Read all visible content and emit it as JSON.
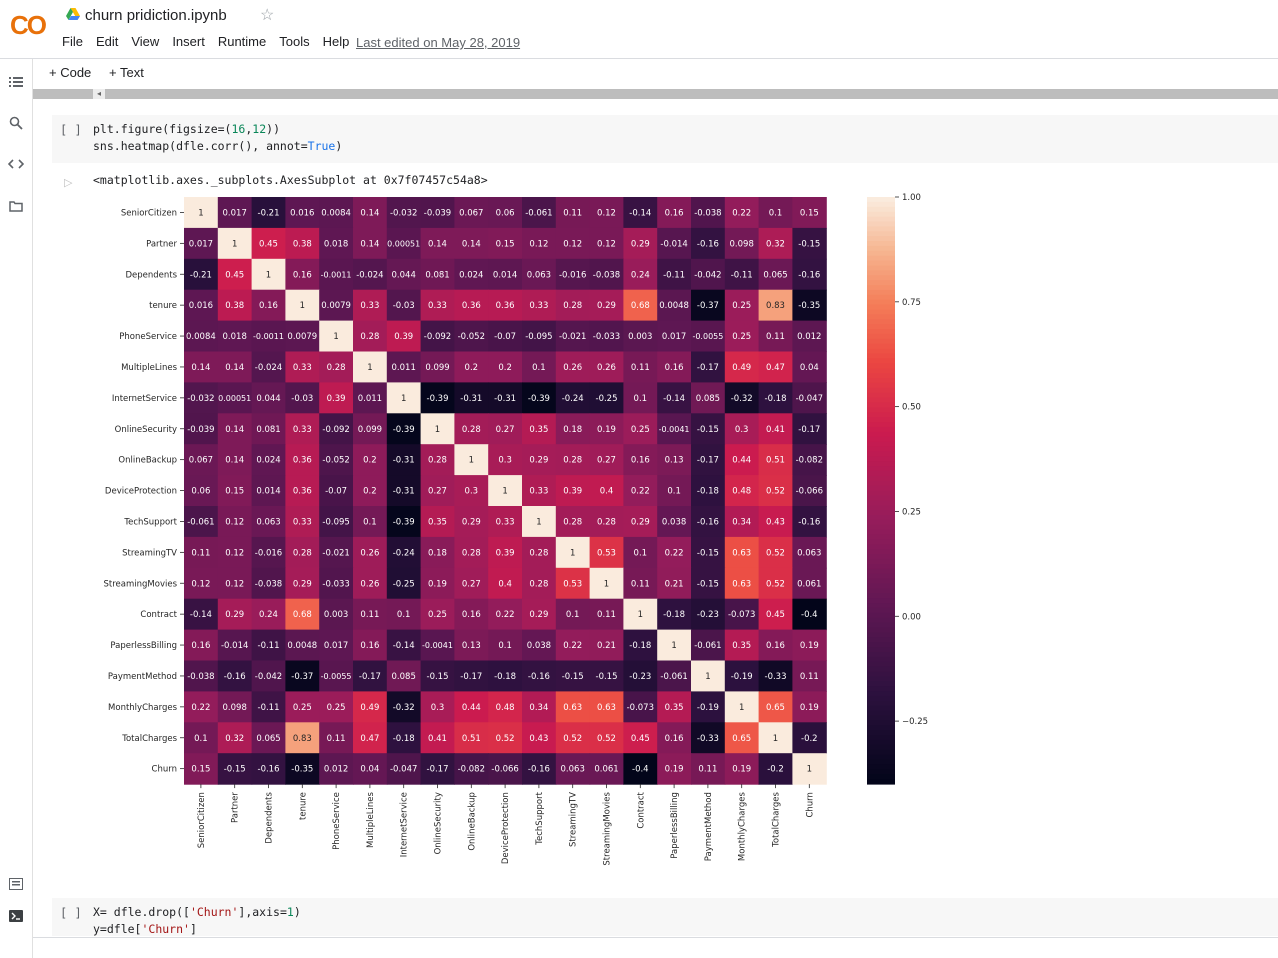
{
  "header": {
    "logo": "CO",
    "title": "churn pridiction.ipynb",
    "last_edited": "Last edited on May 28, 2019"
  },
  "menu": [
    "File",
    "Edit",
    "View",
    "Insert",
    "Runtime",
    "Tools",
    "Help"
  ],
  "toolbar": {
    "code_label": "+ Code",
    "text_label": "+ Text"
  },
  "sidebar_icons": [
    "toc-icon",
    "search-icon",
    "code-snippets-icon",
    "files-icon",
    "command-palette-icon",
    "terminal-icon"
  ],
  "cell1": {
    "run_label": "[ ]",
    "lines": [
      "plt.figure(figsize=(16,12))",
      "sns.heatmap(dfle.corr(), annot=True)"
    ]
  },
  "output": {
    "text": "<matplotlib.axes._subplots.AxesSubplot at 0x7f07457c54a8>"
  },
  "cell2": {
    "run_label": "[ ]",
    "lines": [
      "X= dfle.drop(['Churn'],axis=1)",
      "y=dfle['Churn']"
    ]
  },
  "chart_data": {
    "type": "heatmap",
    "labels": [
      "SeniorCitizen",
      "Partner",
      "Dependents",
      "tenure",
      "PhoneService",
      "MultipleLines",
      "InternetService",
      "OnlineSecurity",
      "OnlineBackup",
      "DeviceProtection",
      "TechSupport",
      "StreamingTV",
      "StreamingMovies",
      "Contract",
      "PaperlessBilling",
      "PaymentMethod",
      "MonthlyCharges",
      "TotalCharges",
      "Churn"
    ],
    "annotations": [
      [
        "1",
        "0.017",
        "-0.21",
        "0.016",
        "0.0084",
        "0.14",
        "-0.032",
        "-0.039",
        "0.067",
        "0.06",
        "-0.061",
        "0.11",
        "0.12",
        "-0.14",
        "0.16",
        "-0.038",
        "0.22",
        "0.1",
        "0.15"
      ],
      [
        "0.017",
        "1",
        "0.45",
        "0.38",
        "0.018",
        "0.14",
        "0.00051",
        "0.14",
        "0.14",
        "0.15",
        "0.12",
        "0.12",
        "0.12",
        "0.29",
        "-0.014",
        "-0.16",
        "0.098",
        "0.32",
        "-0.15"
      ],
      [
        "-0.21",
        "0.45",
        "1",
        "0.16",
        "-0.0011",
        "-0.024",
        "0.044",
        "0.081",
        "0.024",
        "0.014",
        "0.063",
        "-0.016",
        "-0.038",
        "0.24",
        "-0.11",
        "-0.042",
        "-0.11",
        "0.065",
        "-0.16"
      ],
      [
        "0.016",
        "0.38",
        "0.16",
        "1",
        "0.0079",
        "0.33",
        "-0.03",
        "0.33",
        "0.36",
        "0.36",
        "0.33",
        "0.28",
        "0.29",
        "0.68",
        "0.0048",
        "-0.37",
        "0.25",
        "0.83",
        "-0.35"
      ],
      [
        "0.0084",
        "0.018",
        "-0.0011",
        "0.0079",
        "1",
        "0.28",
        "0.39",
        "-0.092",
        "-0.052",
        "-0.07",
        "-0.095",
        "-0.021",
        "-0.033",
        "0.003",
        "0.017",
        "-0.0055",
        "0.25",
        "0.11",
        "0.012"
      ],
      [
        "0.14",
        "0.14",
        "-0.024",
        "0.33",
        "0.28",
        "1",
        "0.011",
        "0.099",
        "0.2",
        "0.2",
        "0.1",
        "0.26",
        "0.26",
        "0.11",
        "0.16",
        "-0.17",
        "0.49",
        "0.47",
        "0.04"
      ],
      [
        "-0.032",
        "0.00051",
        "0.044",
        "-0.03",
        "0.39",
        "0.011",
        "1",
        "-0.39",
        "-0.31",
        "-0.31",
        "-0.39",
        "-0.24",
        "-0.25",
        "0.1",
        "-0.14",
        "0.085",
        "-0.32",
        "-0.18",
        "-0.047"
      ],
      [
        "-0.039",
        "0.14",
        "0.081",
        "0.33",
        "-0.092",
        "0.099",
        "-0.39",
        "1",
        "0.28",
        "0.27",
        "0.35",
        "0.18",
        "0.19",
        "0.25",
        "-0.0041",
        "-0.15",
        "0.3",
        "0.41",
        "-0.17"
      ],
      [
        "0.067",
        "0.14",
        "0.024",
        "0.36",
        "-0.052",
        "0.2",
        "-0.31",
        "0.28",
        "1",
        "0.3",
        "0.29",
        "0.28",
        "0.27",
        "0.16",
        "0.13",
        "-0.17",
        "0.44",
        "0.51",
        "-0.082"
      ],
      [
        "0.06",
        "0.15",
        "0.014",
        "0.36",
        "-0.07",
        "0.2",
        "-0.31",
        "0.27",
        "0.3",
        "1",
        "0.33",
        "0.39",
        "0.4",
        "0.22",
        "0.1",
        "-0.18",
        "0.48",
        "0.52",
        "-0.066"
      ],
      [
        "-0.061",
        "0.12",
        "0.063",
        "0.33",
        "-0.095",
        "0.1",
        "-0.39",
        "0.35",
        "0.29",
        "0.33",
        "1",
        "0.28",
        "0.28",
        "0.29",
        "0.038",
        "-0.16",
        "0.34",
        "0.43",
        "-0.16"
      ],
      [
        "0.11",
        "0.12",
        "-0.016",
        "0.28",
        "-0.021",
        "0.26",
        "-0.24",
        "0.18",
        "0.28",
        "0.39",
        "0.28",
        "1",
        "0.53",
        "0.1",
        "0.22",
        "-0.15",
        "0.63",
        "0.52",
        "0.063"
      ],
      [
        "0.12",
        "0.12",
        "-0.038",
        "0.29",
        "-0.033",
        "0.26",
        "-0.25",
        "0.19",
        "0.27",
        "0.4",
        "0.28",
        "0.53",
        "1",
        "0.11",
        "0.21",
        "-0.15",
        "0.63",
        "0.52",
        "0.061"
      ],
      [
        "-0.14",
        "0.29",
        "0.24",
        "0.68",
        "0.003",
        "0.11",
        "0.1",
        "0.25",
        "0.16",
        "0.22",
        "0.29",
        "0.1",
        "0.11",
        "1",
        "-0.18",
        "-0.23",
        "-0.073",
        "0.45",
        "-0.4"
      ],
      [
        "0.16",
        "-0.014",
        "-0.11",
        "0.0048",
        "0.017",
        "0.16",
        "-0.14",
        "-0.0041",
        "0.13",
        "0.1",
        "0.038",
        "0.22",
        "0.21",
        "-0.18",
        "1",
        "-0.061",
        "0.35",
        "0.16",
        "0.19"
      ],
      [
        "-0.038",
        "-0.16",
        "-0.042",
        "-0.37",
        "-0.0055",
        "-0.17",
        "0.085",
        "-0.15",
        "-0.17",
        "-0.18",
        "-0.16",
        "-0.15",
        "-0.15",
        "-0.23",
        "-0.061",
        "1",
        "-0.19",
        "-0.33",
        "0.11"
      ],
      [
        "0.22",
        "0.098",
        "-0.11",
        "0.25",
        "0.25",
        "0.49",
        "-0.32",
        "0.3",
        "0.44",
        "0.48",
        "0.34",
        "0.63",
        "0.63",
        "-0.073",
        "0.35",
        "-0.19",
        "1",
        "0.65",
        "0.19"
      ],
      [
        "0.1",
        "0.32",
        "0.065",
        "0.83",
        "0.11",
        "0.47",
        "-0.18",
        "0.41",
        "0.51",
        "0.52",
        "0.43",
        "0.52",
        "0.52",
        "0.45",
        "0.16",
        "-0.33",
        "0.65",
        "1",
        "-0.2"
      ],
      [
        "0.15",
        "-0.15",
        "-0.16",
        "-0.35",
        "0.012",
        "0.04",
        "-0.047",
        "-0.17",
        "-0.082",
        "-0.066",
        "-0.16",
        "0.063",
        "0.061",
        "-0.4",
        "0.19",
        "0.11",
        "0.19",
        "-0.2",
        "1"
      ]
    ],
    "vmin": -0.4,
    "vmax": 1.0,
    "colormap": "rocket",
    "colorbar_ticks": [
      "1.00",
      "0.75",
      "0.50",
      "0.25",
      "0.00",
      "−0.25"
    ],
    "colorbar_values": [
      1.0,
      0.75,
      0.5,
      0.25,
      0.0,
      -0.25
    ]
  }
}
